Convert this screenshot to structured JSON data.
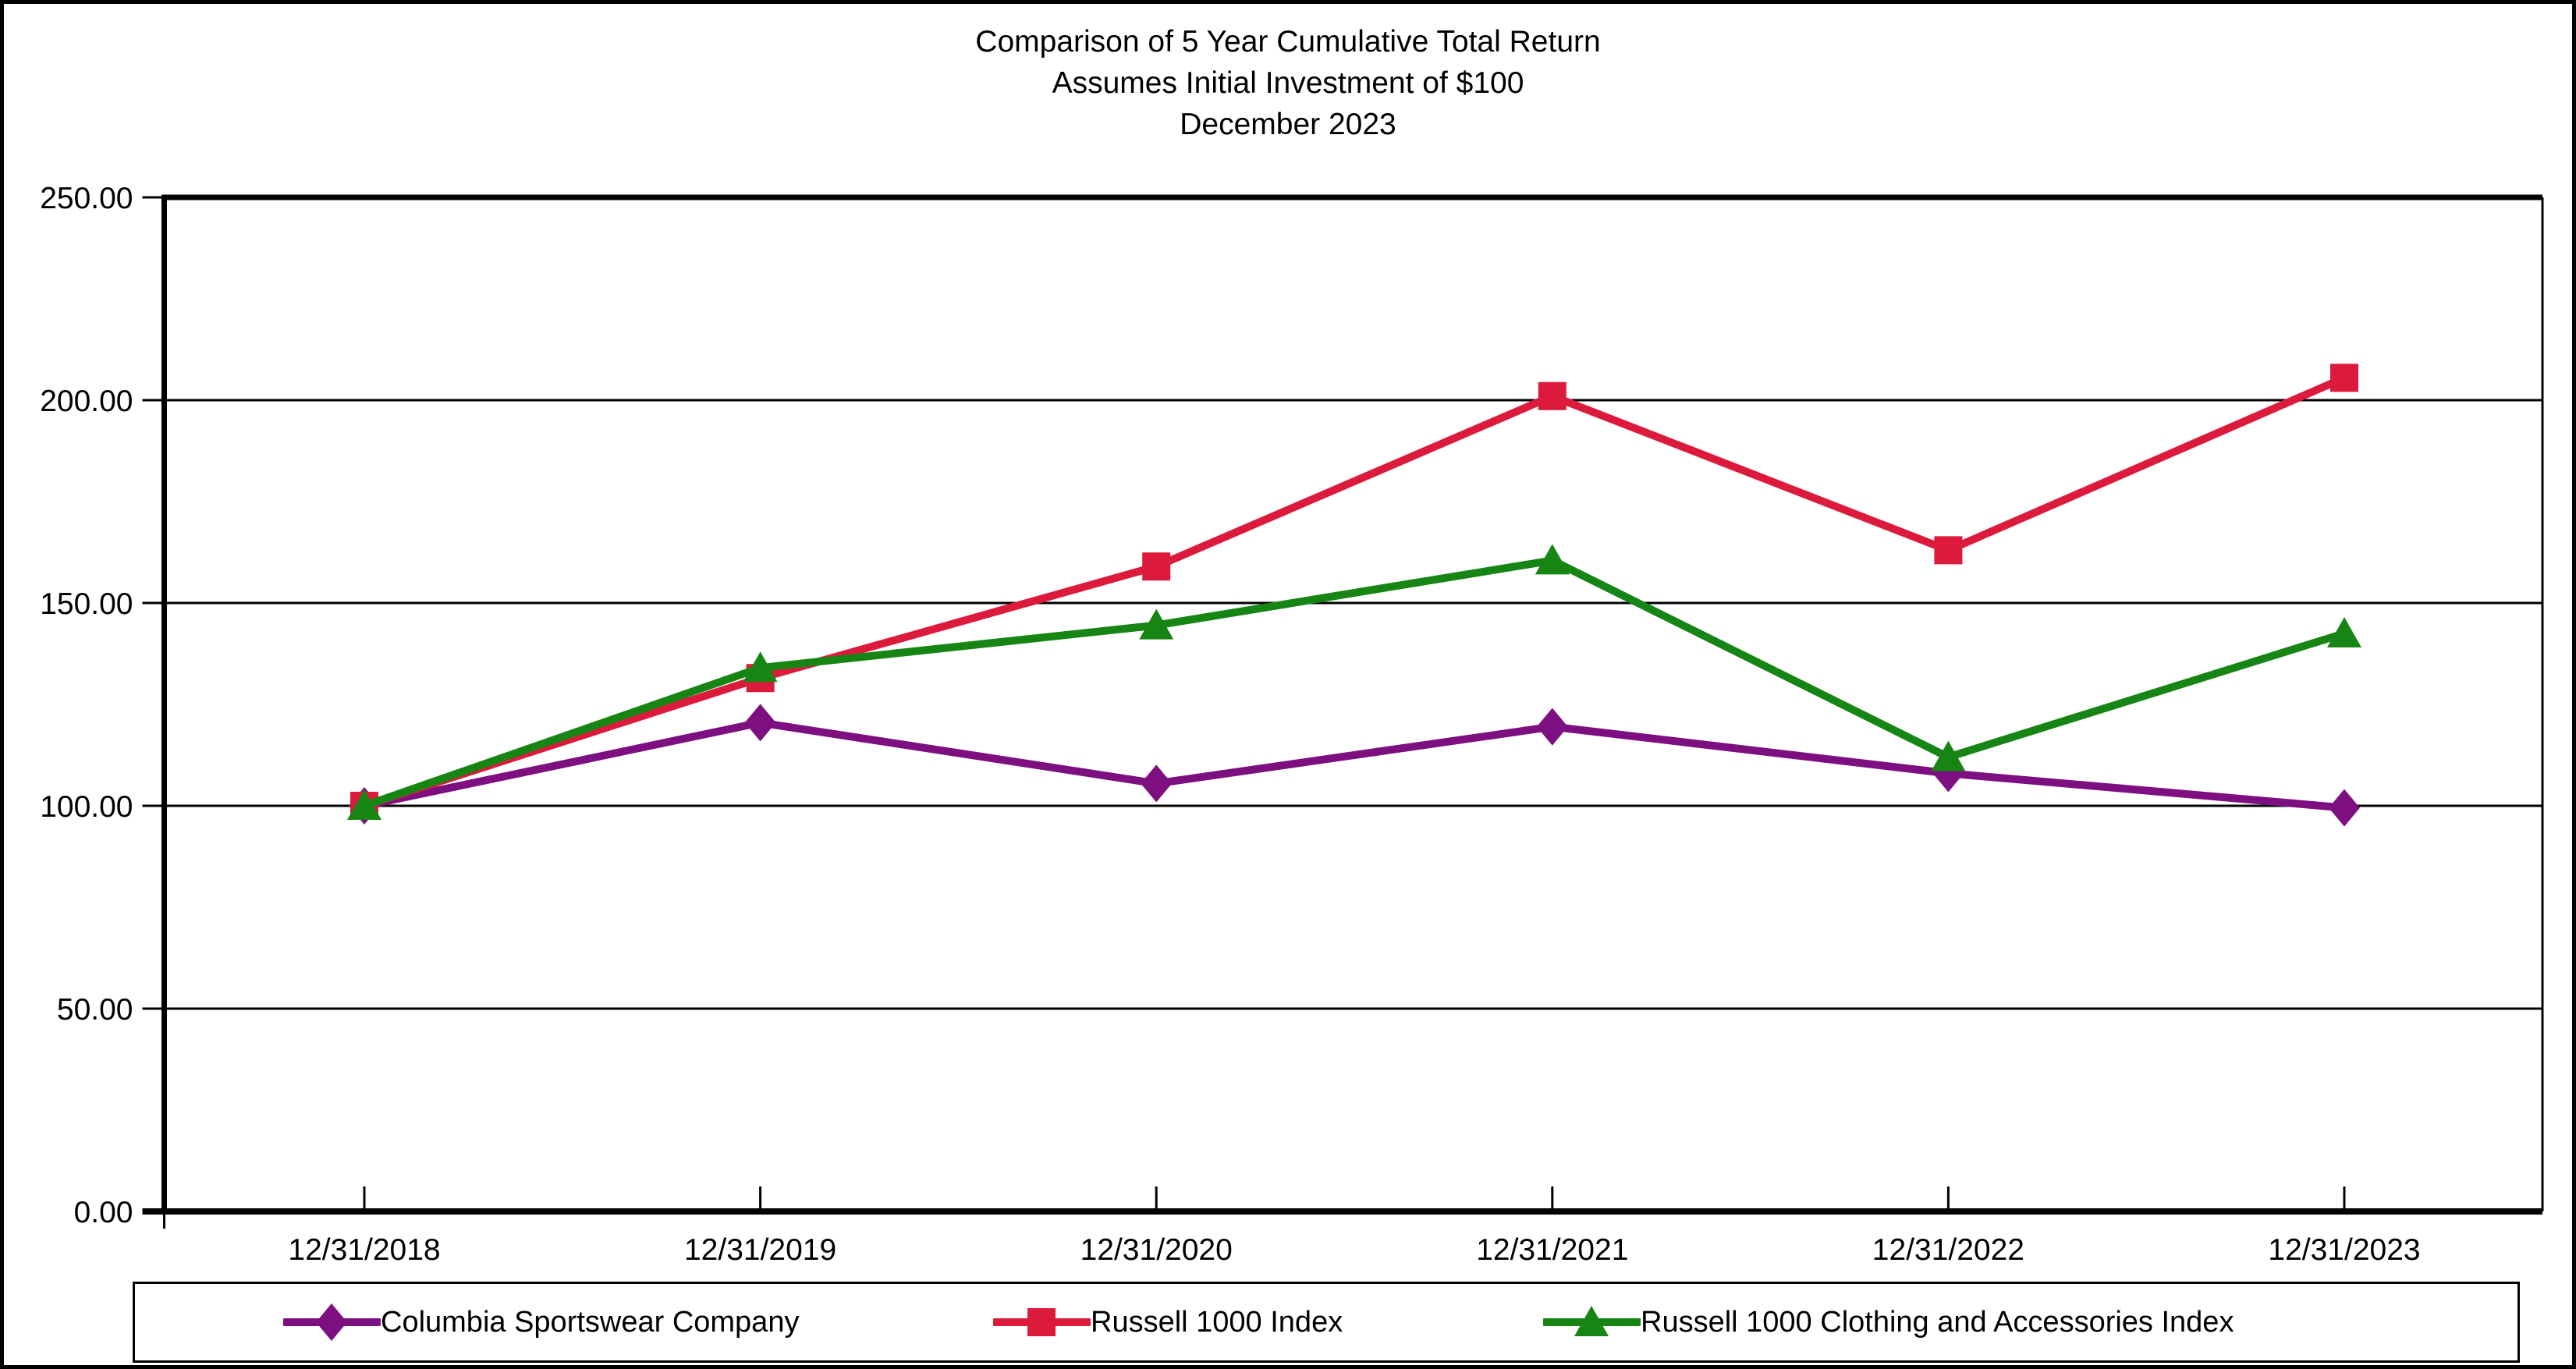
{
  "figure": {
    "title_lines": [
      "Comparison of 5 Year Cumulative Total Return",
      "Assumes Initial Investment of $100",
      "December 2023"
    ]
  },
  "chart_data": {
    "type": "line",
    "title": "Comparison of 5 Year Cumulative Total Return",
    "subtitle": "Assumes Initial Investment of $100",
    "subtitle2": "December 2023",
    "categories": [
      "12/31/2018",
      "12/31/2019",
      "12/31/2020",
      "12/31/2021",
      "12/31/2022",
      "12/31/2023"
    ],
    "series": [
      {
        "name": "Columbia Sportswear Company",
        "marker": "diamond",
        "color": "#7D0F81",
        "values": [
          100.0,
          120.5,
          105.5,
          119.5,
          108.0,
          99.5
        ]
      },
      {
        "name": "Russell 1000 Index",
        "marker": "square",
        "color": "#DC1A3C",
        "values": [
          100.0,
          131.5,
          159.0,
          201.0,
          163.0,
          205.5
        ]
      },
      {
        "name": "Russell 1000 Clothing and Accessories Index",
        "marker": "triangle",
        "color": "#168514",
        "values": [
          100.0,
          134.0,
          144.5,
          160.5,
          112.0,
          142.5
        ]
      }
    ],
    "ylim": [
      0,
      250
    ],
    "y_tick_step": 50,
    "y_tick_labels": [
      "0.00",
      "50.00",
      "100.00",
      "150.00",
      "200.00",
      "250.00"
    ],
    "xlabel": "",
    "ylabel": "",
    "grid": true,
    "legend_position": "bottom",
    "axis_color": "#000000",
    "background_color": "#FFFFFF"
  }
}
